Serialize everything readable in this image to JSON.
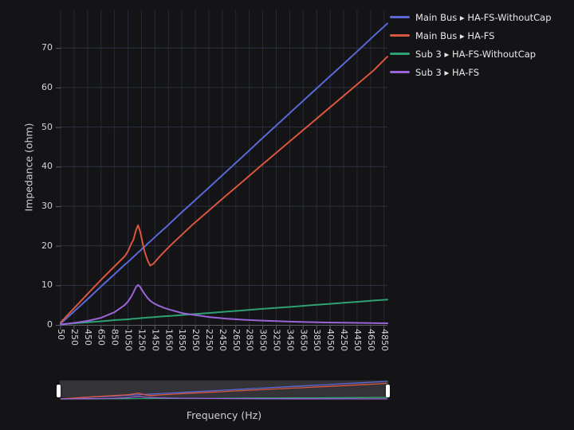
{
  "axes": {
    "y": {
      "title": "Impedance (ohm)",
      "ticks": [
        0,
        10,
        20,
        30,
        40,
        50,
        60,
        70
      ]
    },
    "x": {
      "title": "Frequency (Hz)",
      "ticks": [
        50,
        250,
        450,
        650,
        850,
        1050,
        1250,
        1450,
        1650,
        1850,
        2050,
        2250,
        2450,
        2650,
        2850,
        3050,
        3250,
        3450,
        3650,
        3850,
        4050,
        4250,
        4450,
        4650,
        4850
      ]
    }
  },
  "colors": {
    "background": "#141316",
    "grid_vertical": "#242a36",
    "grid_horizontal": "#2b3242",
    "axis_line": "#585d68",
    "tick_text": "#d6d6d8",
    "legend_text": "#e8e8ea",
    "navigator_bg": "#333338",
    "navigator_under": "#1d1d20",
    "navigator_border": "#0c0c0e",
    "navigator_handle": "#ffffff"
  },
  "chart_data": {
    "type": "line",
    "title": "",
    "xlabel": "Frequency (Hz)",
    "ylabel": "Impedance (ohm)",
    "xlim": [
      50,
      4900
    ],
    "ylim": [
      0,
      79.7
    ],
    "x_tick_interval": 200,
    "grid": true,
    "legend_position": "top-right",
    "x": [
      50,
      250,
      450,
      650,
      850,
      1000,
      1050,
      1100,
      1130,
      1170,
      1200,
      1230,
      1270,
      1300,
      1340,
      1380,
      1430,
      1500,
      1600,
      1700,
      1850,
      2000,
      2250,
      2500,
      2750,
      3000,
      3250,
      3500,
      3750,
      4000,
      4250,
      4500,
      4700,
      4900
    ],
    "series": [
      {
        "name": "Main Bus ▸ HA-FS-WithoutCap",
        "color": "#5a69d7",
        "values": [
          0.3,
          3.4,
          6.5,
          9.7,
          12.8,
          15.2,
          15.9,
          16.7,
          17.2,
          17.8,
          18.3,
          18.7,
          19.4,
          19.8,
          20.5,
          21.1,
          21.9,
          23.0,
          24.5,
          26.1,
          28.5,
          30.8,
          34.7,
          38.6,
          42.5,
          46.5,
          50.4,
          54.3,
          58.2,
          62.1,
          66.0,
          69.9,
          73.1,
          76.2
        ]
      },
      {
        "name": "Main Bus ▸ HA-FS",
        "color": "#d9563f",
        "values": [
          0.6,
          4.2,
          7.8,
          11.4,
          14.8,
          17.3,
          18.6,
          20.6,
          21.5,
          24.0,
          25.2,
          23.6,
          20.5,
          18.3,
          16.3,
          15.0,
          15.5,
          16.9,
          18.7,
          20.4,
          22.8,
          25.2,
          28.9,
          32.6,
          36.2,
          39.9,
          43.5,
          47.1,
          50.7,
          54.3,
          57.9,
          61.5,
          64.4,
          67.8
        ]
      },
      {
        "name": "Sub 3 ▸ HA-FS-WithoutCap",
        "color": "#2ea173",
        "values": [
          0.1,
          0.4,
          0.65,
          0.9,
          1.2,
          1.35,
          1.4,
          1.5,
          1.55,
          1.6,
          1.65,
          1.7,
          1.75,
          1.8,
          1.85,
          1.9,
          1.95,
          2.05,
          2.2,
          2.3,
          2.5,
          2.7,
          3.0,
          3.35,
          3.65,
          4.0,
          4.3,
          4.6,
          4.95,
          5.25,
          5.6,
          5.9,
          6.15,
          6.4
        ]
      },
      {
        "name": "Sub 3 ▸ HA-FS",
        "color": "#9a64d8",
        "values": [
          0.1,
          0.5,
          1.0,
          1.8,
          3.2,
          5.0,
          5.9,
          7.2,
          8.2,
          9.6,
          10.1,
          9.6,
          8.5,
          7.7,
          6.8,
          6.1,
          5.5,
          4.9,
          4.2,
          3.7,
          3.0,
          2.6,
          2.0,
          1.6,
          1.3,
          1.1,
          0.95,
          0.8,
          0.7,
          0.6,
          0.55,
          0.5,
          0.45,
          0.4
        ]
      }
    ]
  },
  "navigator": {
    "range_start_label": "",
    "range_end_label": ""
  }
}
